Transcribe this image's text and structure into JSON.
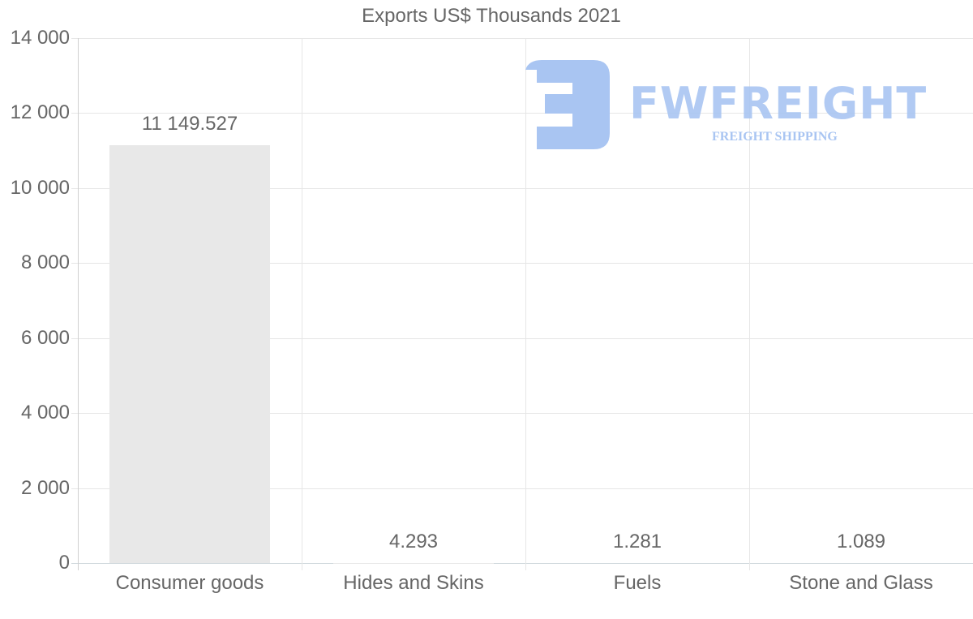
{
  "chart_data": {
    "type": "bar",
    "title": "Exports US$ Thousands 2021",
    "categories": [
      "Consumer goods",
      "Hides and Skins",
      "Fuels",
      "Stone and Glass"
    ],
    "values": [
      11149.527,
      4.293,
      1.281,
      1.089
    ],
    "value_labels": [
      "11 149.527",
      "4.293",
      "1.281",
      "1.089"
    ],
    "xlabel": "",
    "ylabel": "",
    "ylim": [
      0,
      14000
    ],
    "yticks": [
      0,
      2000,
      4000,
      6000,
      8000,
      10000,
      12000,
      14000
    ],
    "ytick_labels": [
      "0",
      "2 000",
      "4 000",
      "6 000",
      "8 000",
      "10 000",
      "12 000",
      "14 000"
    ],
    "grid": true,
    "legend": "none",
    "bar_color": "#e8e8e8"
  },
  "watermark": {
    "brand": "FWFREIGHT",
    "tagline": "FREIGHT SHIPPING",
    "color": "#a9c5f2"
  }
}
